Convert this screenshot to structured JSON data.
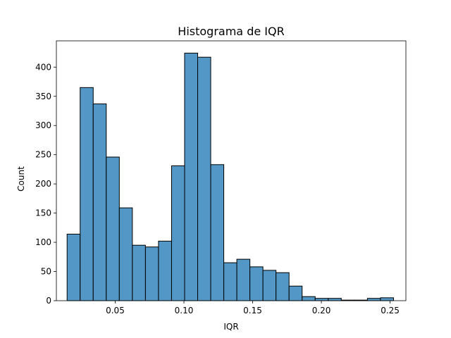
{
  "chart_data": {
    "type": "bar",
    "title": "Histograma de IQR",
    "xlabel": "IQR",
    "ylabel": "Count",
    "xlim": [
      0.0072,
      0.2615
    ],
    "ylim": [
      0,
      445
    ],
    "xticks": [
      0.05,
      0.1,
      0.15,
      0.2,
      0.25
    ],
    "xtick_labels": [
      "0.05",
      "0.10",
      "0.15",
      "0.20",
      "0.25"
    ],
    "yticks": [
      0,
      50,
      100,
      150,
      200,
      250,
      300,
      350,
      400
    ],
    "ytick_labels": [
      "0",
      "50",
      "100",
      "150",
      "200",
      "250",
      "300",
      "350",
      "400"
    ],
    "grid": false,
    "bar_color": "#5297c6",
    "edge_color": "#000000",
    "bins": [
      {
        "start": 0.015,
        "end": 0.0245,
        "count": 114
      },
      {
        "start": 0.0245,
        "end": 0.034,
        "count": 365
      },
      {
        "start": 0.034,
        "end": 0.0435,
        "count": 337
      },
      {
        "start": 0.0435,
        "end": 0.053,
        "count": 246
      },
      {
        "start": 0.053,
        "end": 0.0625,
        "count": 159
      },
      {
        "start": 0.0625,
        "end": 0.072,
        "count": 95
      },
      {
        "start": 0.072,
        "end": 0.0815,
        "count": 92
      },
      {
        "start": 0.0815,
        "end": 0.091,
        "count": 102
      },
      {
        "start": 0.091,
        "end": 0.1005,
        "count": 231
      },
      {
        "start": 0.1005,
        "end": 0.11,
        "count": 424
      },
      {
        "start": 0.11,
        "end": 0.1195,
        "count": 417
      },
      {
        "start": 0.1195,
        "end": 0.129,
        "count": 233
      },
      {
        "start": 0.129,
        "end": 0.1385,
        "count": 65
      },
      {
        "start": 0.1385,
        "end": 0.148,
        "count": 71
      },
      {
        "start": 0.148,
        "end": 0.1575,
        "count": 58
      },
      {
        "start": 0.1575,
        "end": 0.167,
        "count": 52
      },
      {
        "start": 0.167,
        "end": 0.1765,
        "count": 48
      },
      {
        "start": 0.1765,
        "end": 0.186,
        "count": 25
      },
      {
        "start": 0.186,
        "end": 0.1955,
        "count": 7
      },
      {
        "start": 0.1955,
        "end": 0.205,
        "count": 4
      },
      {
        "start": 0.205,
        "end": 0.2145,
        "count": 4
      },
      {
        "start": 0.2145,
        "end": 0.224,
        "count": 1
      },
      {
        "start": 0.224,
        "end": 0.2335,
        "count": 1
      },
      {
        "start": 0.2335,
        "end": 0.243,
        "count": 4
      },
      {
        "start": 0.243,
        "end": 0.2525,
        "count": 5
      }
    ]
  }
}
